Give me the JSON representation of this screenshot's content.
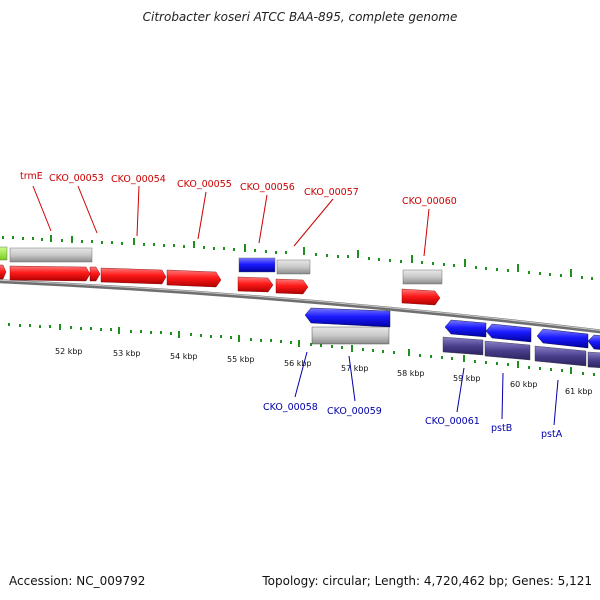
{
  "title": "Citrobacter koseri ATCC BAA-895, complete genome",
  "footer": {
    "accession": "Accession: NC_009792",
    "topology": "Topology: circular; Length: 4,720,462 bp; Genes: 5,121"
  },
  "colors": {
    "forward_cds": "#ff1a1a",
    "reverse_cds": "#1a1aff",
    "gray_feature": "#c8c8c8",
    "reverse_dark": "#4a3f8c",
    "green_tick": "#1f8f1f",
    "backbone": "#7f7f7f",
    "label_forward": "#cc0000",
    "label_reverse": "#0000aa",
    "yellowgreen_feature": "#99ee33"
  },
  "ruler": {
    "unit": "kbp",
    "labels": [
      "52 kbp",
      "53 kbp",
      "54 kbp",
      "55 kbp",
      "56 kbp",
      "57 kbp",
      "58 kbp",
      "59 kbp",
      "60 kbp",
      "61 kbp"
    ]
  },
  "forward_labels": [
    "trmE",
    "CKO_00053",
    "CKO_00054",
    "CKO_00055",
    "CKO_00056",
    "CKO_00057",
    "CKO_00060"
  ],
  "reverse_labels": [
    "CKO_00058",
    "CKO_00059",
    "CKO_00061",
    "pstB",
    "pstA"
  ]
}
